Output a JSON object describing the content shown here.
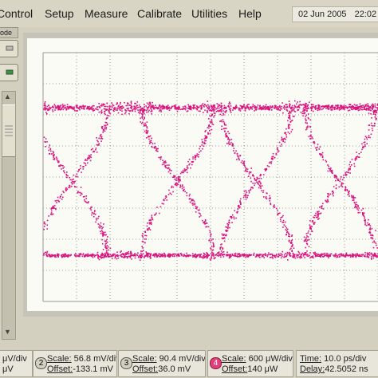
{
  "menu": {
    "items": [
      "Control",
      "Setup",
      "Measure",
      "Calibrate",
      "Utilities",
      "Help"
    ],
    "datetime": {
      "date": "02 Jun 2005",
      "time": "22:02"
    }
  },
  "sidebar": {
    "mode_label": "ode"
  },
  "channels": [
    {
      "id": "ch1",
      "number": "",
      "scale": "μV/div",
      "offset": "μV"
    },
    {
      "id": "ch2",
      "number": "2",
      "scale_label": "Scale:",
      "scale": "56.8 mV/div",
      "offset_label": "Offset:",
      "offset": "-133.1 mV"
    },
    {
      "id": "ch3",
      "number": "3",
      "scale_label": "Scale:",
      "scale": "90.4 mV/div",
      "offset_label": "Offset:",
      "offset": "36.0 mV"
    },
    {
      "id": "ch4",
      "number": "4",
      "scale_label": "Scale:",
      "scale": "600 μW/div",
      "offset_label": "Offset:",
      "offset": "140 μW"
    }
  ],
  "timebase": {
    "time_label": "Time:",
    "time": "10.0 ps/div",
    "delay_label": "Delay:",
    "delay": "42.5052 ns"
  },
  "colors": {
    "waveform": "#d8137e",
    "grid": "#9a9a92",
    "background": "#fbfbf6",
    "ch4_badge": "#e0407a"
  },
  "chart_data": {
    "type": "scatter",
    "title": "",
    "description_series": "eye diagram",
    "grid": true,
    "x_divisions": 10,
    "y_divisions": 8,
    "series": [
      {
        "level": "high",
        "y_div": 2.25,
        "thickness_div": 0.3
      },
      {
        "level": "low",
        "y_div": -2.5,
        "thickness_div": 0.18
      }
    ],
    "crossings_x_div": [
      0.85,
      4.0,
      6.35,
      8.85
    ]
  }
}
